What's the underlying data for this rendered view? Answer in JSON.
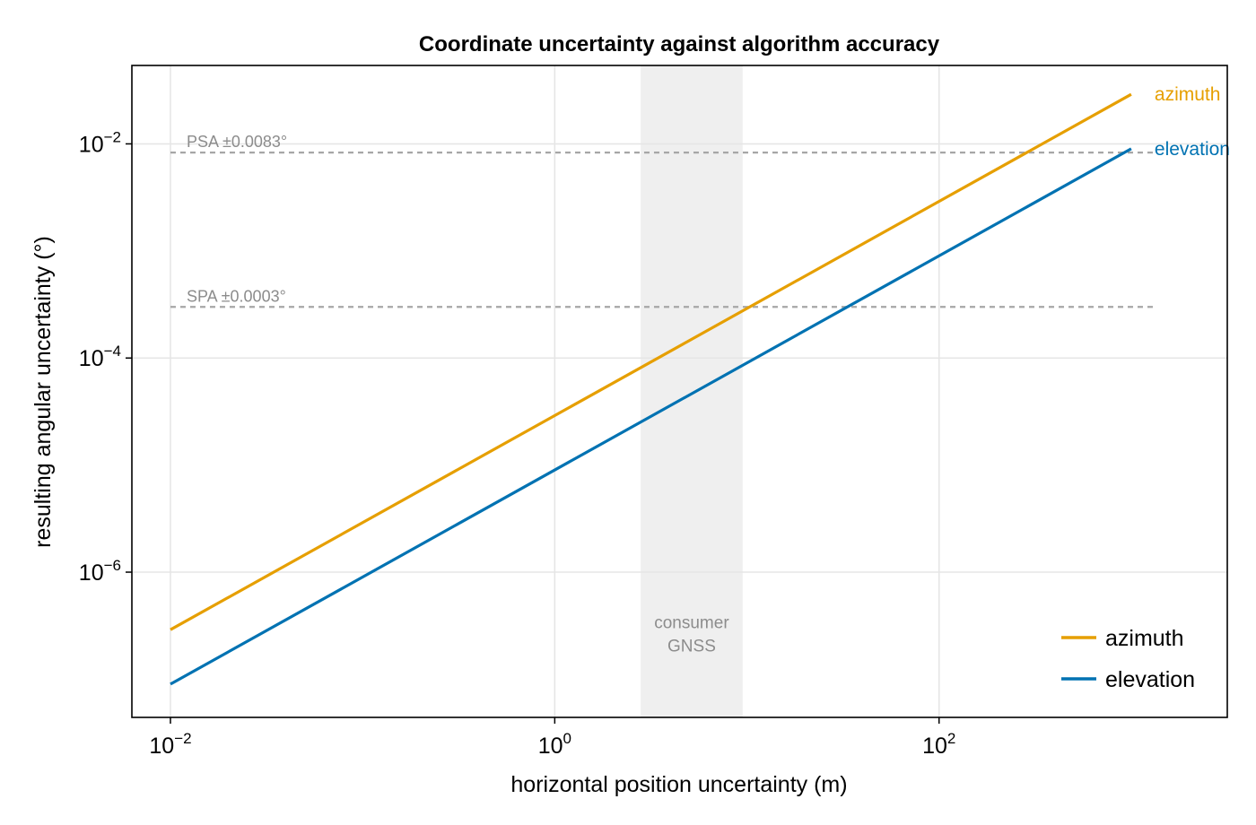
{
  "chart_data": {
    "type": "line",
    "title": "Coordinate uncertainty against algorithm accuracy",
    "xlabel": "horizontal position uncertainty (m)",
    "ylabel": "resulting angular uncertainty (°)",
    "xscale": "log",
    "yscale": "log",
    "xlim": [
      0.0063,
      3162
    ],
    "ylim": [
      4.4e-08,
      0.054
    ],
    "grid": true,
    "x_ticks": [
      {
        "value": 0.01,
        "base": "10",
        "exp": "−2"
      },
      {
        "value": 1,
        "base": "10",
        "exp": "0"
      },
      {
        "value": 100,
        "base": "10",
        "exp": "2"
      }
    ],
    "y_ticks": [
      {
        "value": 1e-06,
        "base": "10",
        "exp": "−6"
      },
      {
        "value": 0.0001,
        "base": "10",
        "exp": "−4"
      },
      {
        "value": 0.01,
        "base": "10",
        "exp": "−2"
      }
    ],
    "series": [
      {
        "name": "azimuth",
        "color": "#E69F00",
        "x": [
          0.01,
          1000
        ],
        "y": [
          2.9e-07,
          0.029
        ]
      },
      {
        "name": "elevation",
        "color": "#0072B2",
        "x": [
          0.01,
          1000
        ],
        "y": [
          9e-08,
          0.009
        ]
      }
    ],
    "reference_lines": [
      {
        "label": "PSA ±0.0083°",
        "y": 0.0083,
        "x_start": 0.01,
        "x_end": 1300
      },
      {
        "label": "SPA ±0.0003°",
        "y": 0.0003,
        "x_start": 0.01,
        "x_end": 1300
      }
    ],
    "shaded_band": {
      "x0": 2.8,
      "x1": 9.5,
      "label_lines": [
        "consumer",
        "GNSS"
      ],
      "label_y": 3e-07
    },
    "legend": {
      "position": "bottom-right",
      "entries": [
        "azimuth",
        "elevation"
      ]
    },
    "colors": {
      "axis": "#000000",
      "grid": "#e5e5e5",
      "band": "#efefef",
      "reference": "#a6a6a6",
      "annotation": "#8c8c8c"
    }
  }
}
